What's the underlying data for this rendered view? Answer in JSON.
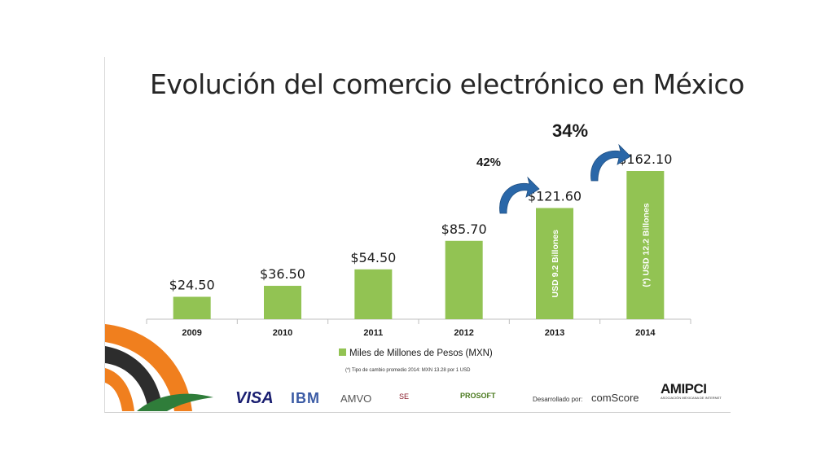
{
  "slide": {
    "title": "Evolución del comercio electrónico en México",
    "footnote": "(*) Tipo de cambio promedio 2014: MXN 13.28 por 1 USD"
  },
  "chart_data": {
    "type": "bar",
    "categories": [
      "2009",
      "2010",
      "2011",
      "2012",
      "2013",
      "2014"
    ],
    "series": [
      {
        "name": "Miles de Millones de Pesos (MXN)",
        "values": [
          24.5,
          36.5,
          54.5,
          85.7,
          121.6,
          162.1
        ],
        "labels": [
          "$24.50",
          "$36.50",
          "$54.50",
          "$85.70",
          "$121.60",
          "$162.10"
        ]
      }
    ],
    "bar_inner_labels": [
      "",
      "",
      "",
      "",
      "USD 9.2 Billones",
      "(*) USD 12.2 Billones"
    ],
    "growth_annotations": [
      {
        "label": "42%",
        "category": "2013"
      },
      {
        "label": "34%",
        "category": "2014"
      }
    ],
    "ylim": [
      0,
      180
    ],
    "grid": false,
    "legend_position": "bottom",
    "colors": {
      "bar": "#92c353",
      "arrow": "#2a67a8",
      "axis": "#bfbfbf"
    }
  },
  "logos": {
    "visa": "VISA",
    "ibm": "IBM",
    "amvo": "AMVO",
    "se": "SE",
    "prosoft": "PROSOFT",
    "developed_by": "Desarrollado por:",
    "comscore": "comScore",
    "amipci": "AMIPCI",
    "amipci_sub": "ASOCIACIÓN MEXICANA DE INTERNET"
  }
}
